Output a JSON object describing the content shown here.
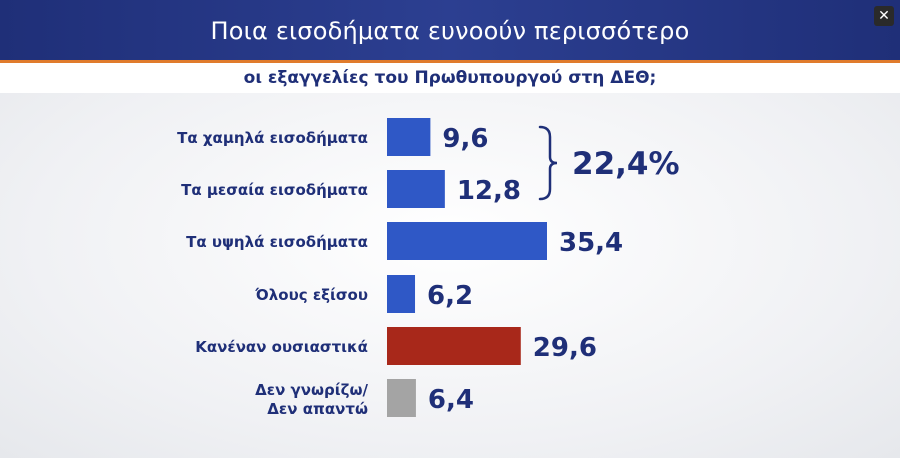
{
  "header": {
    "title": "Ποια εισοδήματα ευνοούν περισσότερο",
    "subtitle": "οι εξαγγελίες του Πρωθυπουργού στη ΔΕΘ;",
    "close_label": "✕"
  },
  "colors": {
    "blue": "#2f58c6",
    "red": "#a8281a",
    "gray": "#a4a4a4",
    "text": "#1f2f78"
  },
  "chart_data": {
    "type": "bar",
    "orientation": "horizontal",
    "title": "Ποια εισοδήματα ευνοούν περισσότερο οι εξαγγελίες του Πρωθυπουργού στη ΔΕΘ;",
    "categories": [
      "Τα χαμηλά εισοδήματα",
      "Τα μεσαία εισοδήματα",
      "Τα υψηλά εισοδήματα",
      "Όλους εξίσου",
      "Κανέναν ουσιαστικά",
      "Δεν γνωρίζω/ Δεν απαντώ"
    ],
    "category_lines": [
      [
        "Τα χαμηλά εισοδήματα"
      ],
      [
        "Τα μεσαία εισοδήματα"
      ],
      [
        "Τα υψηλά εισοδήματα"
      ],
      [
        "Όλους εξίσου"
      ],
      [
        "Κανέναν ουσιαστικά"
      ],
      [
        "Δεν γνωρίζω/",
        "Δεν απαντώ"
      ]
    ],
    "values": [
      9.6,
      12.8,
      35.4,
      6.2,
      29.6,
      6.4
    ],
    "value_labels": [
      "9,6",
      "12,8",
      "35,4",
      "6,2",
      "29,6",
      "6,4"
    ],
    "bar_colors": [
      "blue",
      "blue",
      "blue",
      "blue",
      "red",
      "gray"
    ],
    "annotation": {
      "text": "22,4%",
      "groups_categories": [
        0,
        1
      ]
    },
    "xlim": [
      0,
      35.4
    ]
  }
}
